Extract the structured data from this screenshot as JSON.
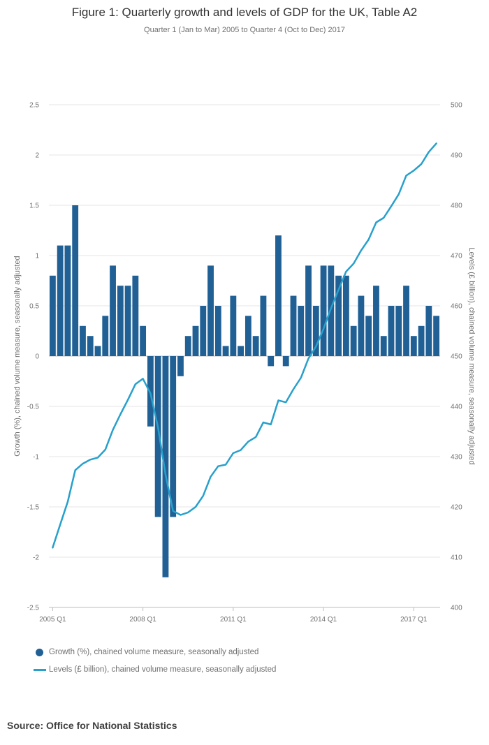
{
  "title": "Figure 1: Quarterly growth and levels of GDP for the UK, Table A2",
  "subtitle": "Quarter 1 (Jan to Mar) 2005 to Quarter 4 (Oct to Dec) 2017",
  "colors": {
    "bar": "#206095",
    "line": "#27a0cc",
    "grid": "#e6e6e6"
  },
  "legend": {
    "growth": "Growth (%), chained volume measure, seasonally adjusted",
    "levels": "Levels (£ billion), chained volume measure, seasonally adjusted"
  },
  "source": "Source: Office for National Statistics",
  "chart_data": {
    "type": "bar+line",
    "x_tick_labels": [
      "2005 Q1",
      "2008 Q1",
      "2011 Q1",
      "2014 Q1",
      "2017 Q1"
    ],
    "x_tick_indices": [
      0,
      12,
      24,
      36,
      48
    ],
    "left_axis": {
      "label": "Growth (%), chained volume measure, seasonally adjusted",
      "range": [
        -2.5,
        2.5
      ],
      "ticks": [
        "2.5",
        "2",
        "1.5",
        "1",
        "0.5",
        "0",
        "-0.5",
        "-1",
        "-1.5",
        "-2",
        "-2.5"
      ]
    },
    "right_axis": {
      "label": "Levels (£ billion), chained volume measure, seasonally adjusted",
      "range": [
        400,
        500
      ],
      "ticks": [
        "500",
        "490",
        "480",
        "470",
        "460",
        "450",
        "440",
        "430",
        "420",
        "410",
        "400"
      ]
    },
    "series": [
      {
        "name": "Growth (%), chained volume measure, seasonally adjusted",
        "type": "bar",
        "axis": "left",
        "values": [
          0.8,
          1.1,
          1.1,
          1.5,
          0.3,
          0.2,
          0.1,
          0.4,
          0.9,
          0.7,
          0.7,
          0.8,
          0.3,
          -0.7,
          -1.6,
          -2.2,
          -1.6,
          -0.2,
          0.2,
          0.3,
          0.5,
          0.9,
          0.5,
          0.1,
          0.6,
          0.1,
          0.4,
          0.2,
          0.6,
          -0.1,
          1.2,
          -0.1,
          0.6,
          0.5,
          0.9,
          0.5,
          0.9,
          0.9,
          0.8,
          0.8,
          0.3,
          0.6,
          0.4,
          0.7,
          0.2,
          0.5,
          0.5,
          0.7,
          0.2,
          0.3,
          0.5,
          0.4
        ]
      },
      {
        "name": "Levels (£ billion), chained volume measure, seasonally adjusted",
        "type": "line",
        "axis": "right",
        "values": [
          411.9,
          416.5,
          421,
          427.3,
          428.6,
          429.4,
          429.8,
          431.4,
          435.3,
          438.4,
          441.3,
          444.4,
          445.5,
          442.6,
          435.8,
          426.5,
          419.2,
          418.4,
          418.9,
          420,
          422.2,
          426,
          428.1,
          428.4,
          430.7,
          431.3,
          433,
          433.9,
          436.8,
          436.4,
          441.2,
          440.8,
          443.4,
          445.7,
          449.5,
          451.9,
          455.4,
          459.5,
          463.2,
          466.8,
          468.4,
          471,
          473.2,
          476.6,
          477.5,
          479.8,
          482.2,
          485.9,
          486.9,
          488.2,
          490.6,
          492.3
        ]
      }
    ]
  }
}
